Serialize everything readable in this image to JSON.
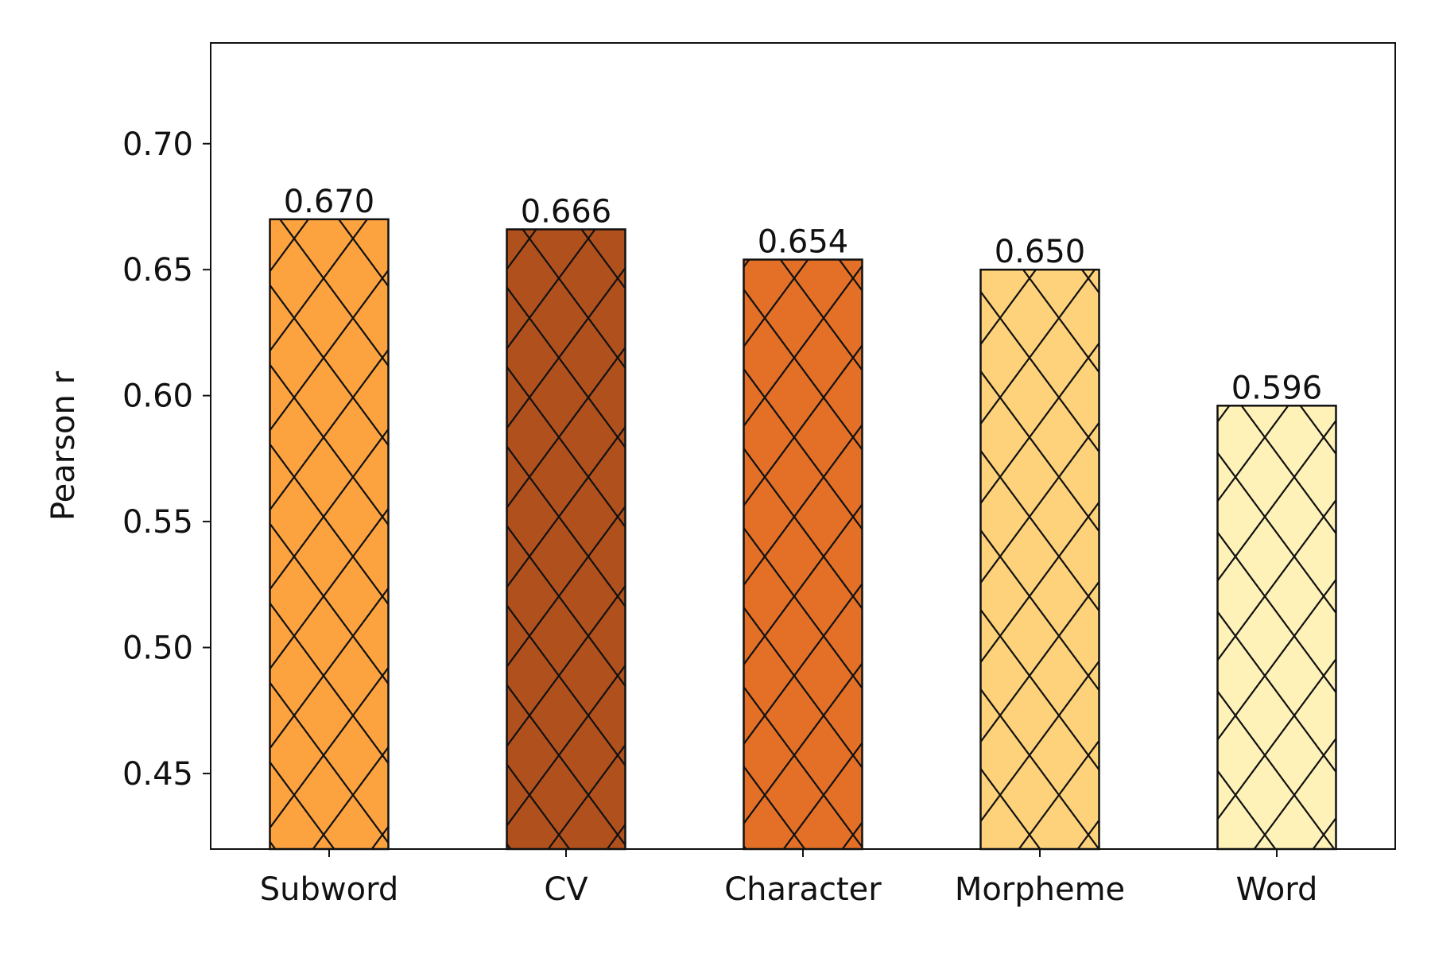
{
  "chart_data": {
    "type": "bar",
    "categories": [
      "Subword",
      "CV",
      "Character",
      "Morpheme",
      "Word"
    ],
    "values": [
      0.67,
      0.666,
      0.654,
      0.65,
      0.596
    ],
    "value_labels": [
      "0.670",
      "0.666",
      "0.654",
      "0.650",
      "0.596"
    ],
    "colors": [
      "#fca33f",
      "#b0501c",
      "#e37026",
      "#fdd27a",
      "#fff2b9"
    ],
    "hatch": "crosshatch-diagonal",
    "title": "",
    "xlabel": "",
    "ylabel": "Pearson r",
    "ylim": [
      0.42,
      0.74
    ],
    "yticks": [
      0.45,
      0.5,
      0.55,
      0.6,
      0.65,
      0.7
    ],
    "ytick_labels": [
      "0.45",
      "0.50",
      "0.55",
      "0.60",
      "0.65",
      "0.70"
    ],
    "grid": false,
    "legend": "none"
  }
}
